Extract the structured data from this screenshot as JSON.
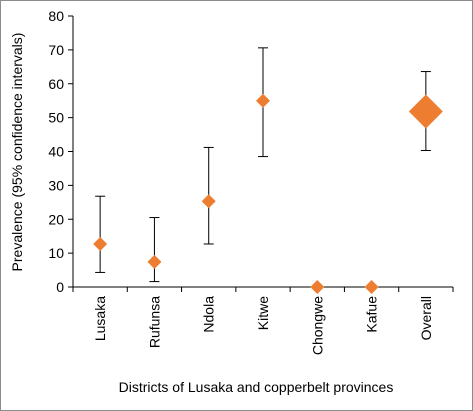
{
  "chart_data": {
    "type": "scatter",
    "title": "",
    "xlabel": "Districts of Lusaka and copperbelt provinces",
    "ylabel": "Prevalence (95% confidence intervals)",
    "ylim": [
      0,
      80
    ],
    "yticks": [
      "0",
      "10",
      "20",
      "30",
      "40",
      "50",
      "60",
      "70",
      "80"
    ],
    "categories": [
      "Lusaka",
      "Rufunsa",
      "Ndola",
      "Kitwe",
      "Chongwe",
      "Kafue",
      "Overall"
    ],
    "values": [
      12.7,
      7.4,
      25.3,
      55,
      0,
      0,
      51.8
    ],
    "ci_lower": [
      4.3,
      1.6,
      12.7,
      38.5,
      0,
      0,
      40.3
    ],
    "ci_upper": [
      26.8,
      20.5,
      41.2,
      70.6,
      0,
      0,
      63.6
    ],
    "marker": "diamond",
    "emphasized_category": "Overall",
    "color": "#ED7D31",
    "errorbar_color": "#000000",
    "grid": false,
    "legend": "none"
  }
}
